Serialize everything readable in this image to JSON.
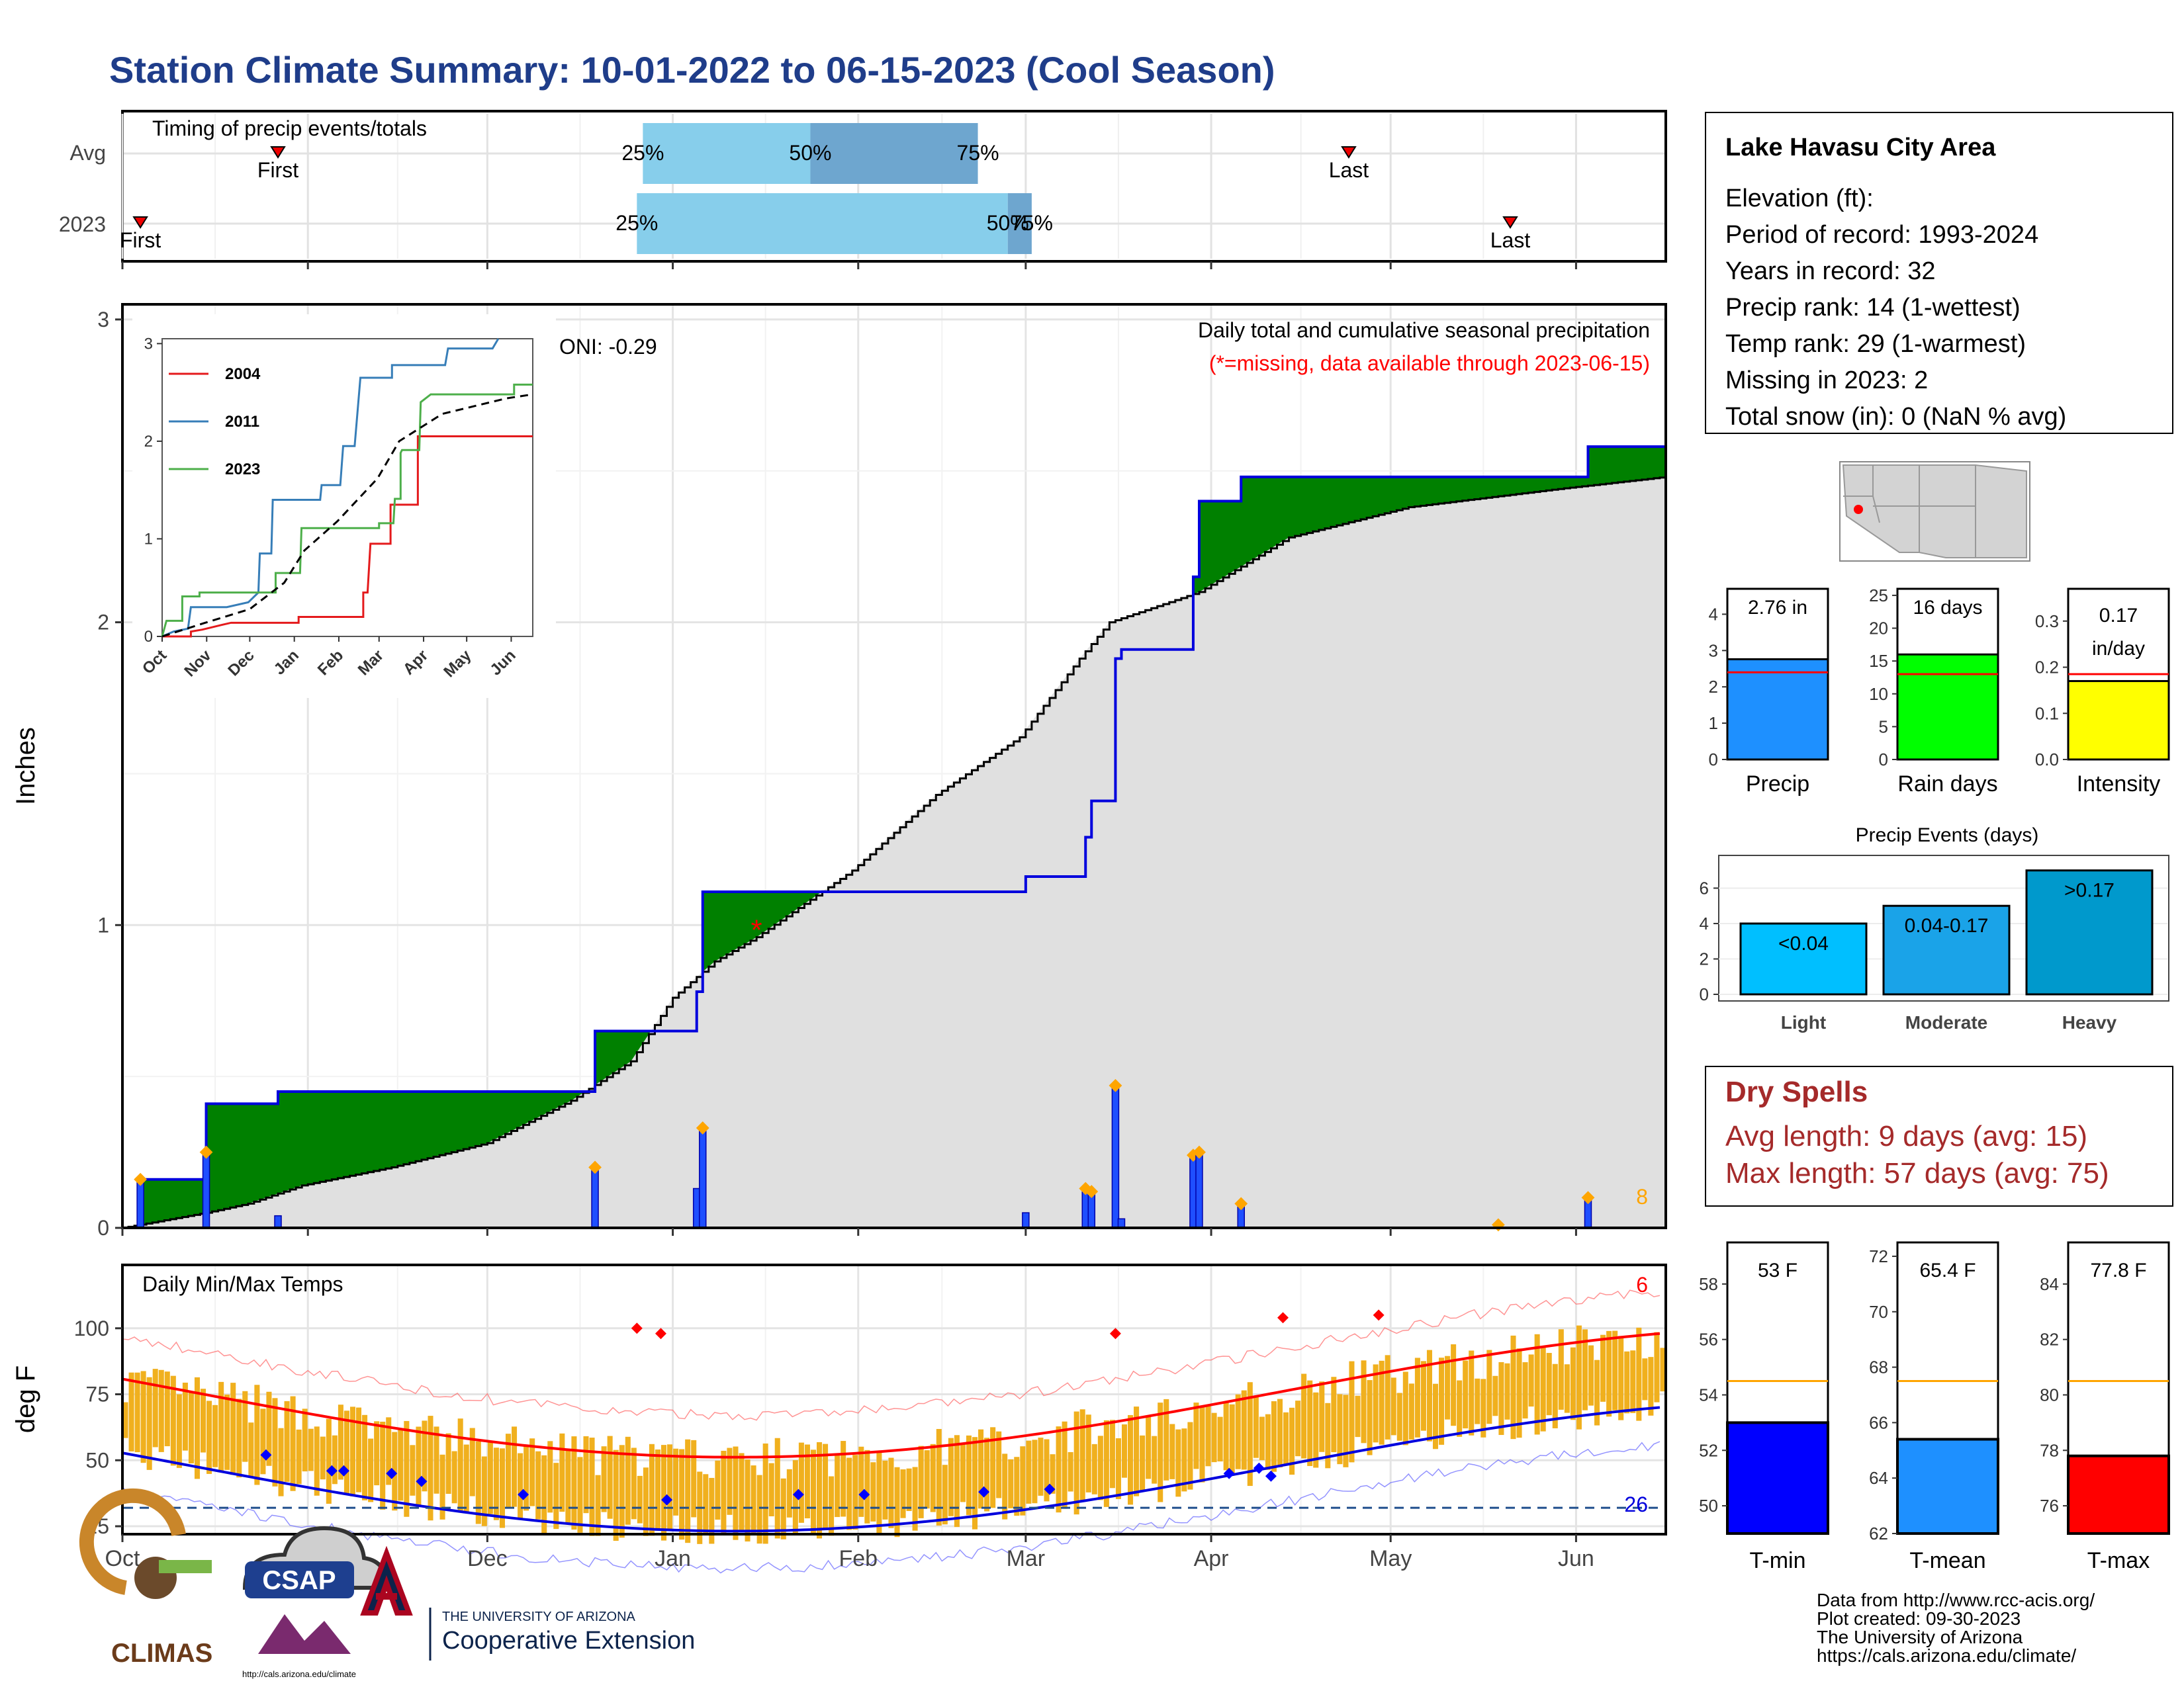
{
  "title": "Station Climate Summary: 10-01-2022 to 06-15-2023 (Cool Season)",
  "timing": {
    "label": "Timing of precip events/totals",
    "rows": [
      "Avg",
      "2023"
    ],
    "first_label": "First",
    "last_label": "Last",
    "pct_labels": [
      "25%",
      "50%",
      "75%"
    ],
    "avg": {
      "first": "2022-10-27",
      "last": "2023-04-24",
      "p25": "2022-12-27",
      "p50": "2023-01-24",
      "p75": "2023-02-21"
    },
    "y2023": {
      "first": "2022-10-04",
      "last": "2023-05-21",
      "p25": "2022-12-26",
      "p50": "2023-02-26",
      "p75": "2023-03-02"
    },
    "colors": {
      "light": "#87ceeb",
      "mid": "#6ea6cf",
      "marker": "#ee0000"
    }
  },
  "main": {
    "ylabel": "Inches",
    "caption": "Daily total and cumulative seasonal precipitation",
    "missing_note": "(*=missing, data available through 2023-06-15)",
    "oni": "ONI: -0.29",
    "count_label": "8",
    "missing_marker": {
      "date": "2023-01-15",
      "value": 1.0,
      "symbol": "*"
    },
    "colors": {
      "above": "#008000",
      "below": "#8b5a00",
      "observed_line": "#0000dd",
      "normal_fill": "#e0e0e0",
      "bar": "#1f4fff",
      "extreme": "#ffa500",
      "missing": "#ff0000"
    }
  },
  "inset": {
    "legend": [
      "2004",
      "2011",
      "2023"
    ],
    "colors": {
      "2004": "#e41a1c",
      "2011": "#377eb8",
      "2023": "#4daf4a",
      "avg": "#000000"
    },
    "months": [
      "Oct",
      "Nov",
      "Dec",
      "Jan",
      "Feb",
      "Mar",
      "Apr",
      "May",
      "Jun"
    ]
  },
  "temps": {
    "label": "Daily Min/Max Temps",
    "ylabel": "deg F",
    "max_count": "6",
    "min_count": "26",
    "freeze_line": 32,
    "colors": {
      "bar": "#f0b01e",
      "tmax": "#ff0000",
      "tmin": "#0000dd",
      "freeze": "#1f4e8c"
    }
  },
  "months": [
    "Oct",
    "Nov",
    "Dec",
    "Jan",
    "Feb",
    "Mar",
    "Apr",
    "May",
    "Jun"
  ],
  "info": {
    "station": "Lake Havasu City Area",
    "lines": [
      "Elevation (ft):",
      "Period of record: 1993-2024",
      "Years in record: 32",
      "Precip rank: 14 (1-wettest)",
      "Temp rank: 29 (1-warmest)",
      "Missing in 2023: 2",
      "Total snow (in): 0 (NaN % avg)"
    ]
  },
  "summary_bars": [
    {
      "label": "Precip",
      "value": 2.76,
      "value_text": "2.76 in",
      "avg": 2.4,
      "ymax": 4.7,
      "ticks": [
        0,
        1,
        2,
        3,
        4
      ],
      "color": "#1e90ff"
    },
    {
      "label": "Rain days",
      "value": 16,
      "value_text": "16 days",
      "avg": 13,
      "ymax": 26,
      "ticks": [
        0,
        5,
        10,
        15,
        20,
        25
      ],
      "color": "#00ff00"
    },
    {
      "label": "Intensity",
      "value": 0.17,
      "value_text": "0.17 in/day",
      "avg": 0.185,
      "ymax": 0.37,
      "ticks": [
        0.0,
        0.1,
        0.2,
        0.3
      ],
      "color": "#ffff00"
    }
  ],
  "events": {
    "title": "Precip Events (days)",
    "categories": [
      "Light",
      "Moderate",
      "Heavy"
    ],
    "values": [
      4,
      5,
      7
    ],
    "labels": [
      "<0.04",
      "0.04-0.17",
      ">0.17"
    ],
    "colors": [
      "#00bfff",
      "#1aa3e8",
      "#0099cc"
    ],
    "ticks": [
      0,
      2,
      4,
      6
    ]
  },
  "dry": {
    "title": "Dry Spells",
    "avg": "Avg length: 9 days (avg: 15)",
    "max": "Max length: 57 days (avg: 75)",
    "color": "#a52a2a"
  },
  "temp_bars": [
    {
      "label": "T-min",
      "value": 53,
      "value_text": "53 F",
      "avg": 54.5,
      "ymin": 49,
      "ymax": 59.5,
      "ticks": [
        50,
        52,
        54,
        56,
        58
      ],
      "color": "#0000ff"
    },
    {
      "label": "T-mean",
      "value": 65.4,
      "value_text": "65.4 F",
      "avg": 67.5,
      "ymin": 62,
      "ymax": 72.5,
      "ticks": [
        62,
        64,
        66,
        68,
        70,
        72
      ],
      "color": "#1e90ff"
    },
    {
      "label": "T-max",
      "value": 77.8,
      "value_text": "77.8 F",
      "avg": 80.5,
      "ymin": 75,
      "ymax": 85.5,
      "ticks": [
        76,
        78,
        80,
        82,
        84
      ],
      "color": "#ff0000"
    }
  ],
  "credits": [
    "Data from http://www.rcc-acis.org/",
    "Plot created: 09-30-2023",
    "The University of Arizona",
    "https://cals.arizona.edu/climate/"
  ],
  "logos": {
    "climas": "CLIMAS",
    "csap": "CSAP",
    "csap_url": "http://cals.arizona.edu/climate",
    "ua_line1": "THE UNIVERSITY OF ARIZONA",
    "ua_line2": "Cooperative Extension"
  }
}
